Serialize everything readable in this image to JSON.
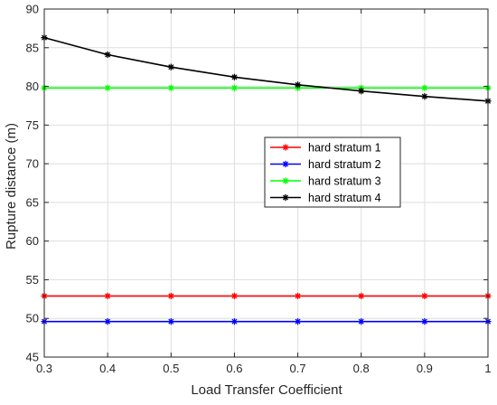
{
  "chart_data": {
    "type": "line",
    "title": "",
    "xlabel": "Load Transfer Coefficient",
    "ylabel": "Rupture distance (m)",
    "xlim": [
      0.3,
      1.0
    ],
    "ylim": [
      45,
      90
    ],
    "xticks": [
      0.3,
      0.4,
      0.5,
      0.6,
      0.7,
      0.8,
      0.9,
      1.0
    ],
    "xtick_labels": [
      "0.3",
      "0.4",
      "0.5",
      "0.6",
      "0.7",
      "0.8",
      "0.9",
      "1"
    ],
    "yticks": [
      45,
      50,
      55,
      60,
      65,
      70,
      75,
      80,
      85,
      90
    ],
    "ytick_labels": [
      "45",
      "50",
      "55",
      "60",
      "65",
      "70",
      "75",
      "80",
      "85",
      "90"
    ],
    "grid": true,
    "legend_position": "center-right",
    "marker": "asterisk",
    "x": [
      0.3,
      0.4,
      0.5,
      0.6,
      0.7,
      0.8,
      0.9,
      1.0
    ],
    "series": [
      {
        "name": "hard stratum 1",
        "color": "#ff0000",
        "values": [
          52.9,
          52.9,
          52.9,
          52.9,
          52.9,
          52.9,
          52.9,
          52.9
        ]
      },
      {
        "name": "hard stratum 2",
        "color": "#0000ff",
        "values": [
          49.6,
          49.6,
          49.6,
          49.6,
          49.6,
          49.6,
          49.6,
          49.6
        ]
      },
      {
        "name": "hard stratum 3",
        "color": "#00ff00",
        "values": [
          79.8,
          79.8,
          79.8,
          79.8,
          79.8,
          79.8,
          79.8,
          79.8
        ]
      },
      {
        "name": "hard stratum 4",
        "color": "#000000",
        "values": [
          86.3,
          84.1,
          82.5,
          81.2,
          80.2,
          79.4,
          78.7,
          78.1
        ]
      }
    ]
  }
}
